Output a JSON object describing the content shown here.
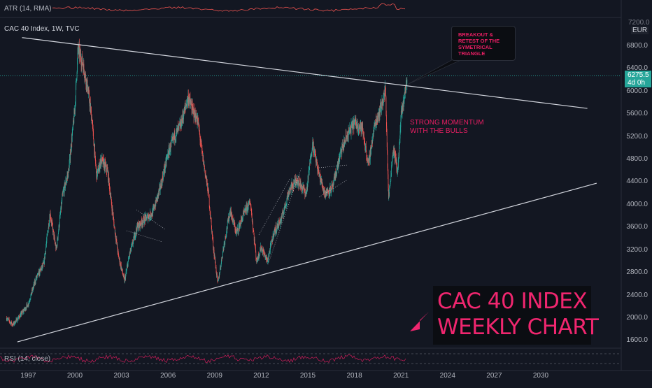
{
  "top_indicator": {
    "label": "ATR (14, RMA)",
    "unit_tick": "7200.0"
  },
  "chart_header": {
    "symbol_line": "CAC 40 Index, 1W, TVC",
    "currency": "EUR"
  },
  "price_tag": {
    "price": "6275.5",
    "countdown": "4d 0h"
  },
  "annotations": {
    "breakout_note": "BREAKOUT & RETEST OF THE SYMETRICAL TRIANGLE",
    "momentum_note_line1": "STRONG MOMENTUM",
    "momentum_note_line2": "WITH THE BULLS",
    "title_line1": "CAC 40 INDEX",
    "title_line2": "WEEKLY CHART"
  },
  "bottom_indicator": {
    "label": "RSI (14, close)"
  },
  "colors": {
    "background": "#131722",
    "up": "#26a69a",
    "down": "#ef5350",
    "accent": "#f0266f",
    "trendline": "#d1d4dc",
    "atr": "#ef5350",
    "rsi": "#e91e63"
  },
  "chart_data": {
    "type": "candlestick",
    "title": "CAC 40 Index, 1W, TVC",
    "currency": "EUR",
    "y_axis": {
      "ticks": [
        1600,
        2000,
        2400,
        2800,
        3200,
        3600,
        4000,
        4400,
        4800,
        5200,
        5600,
        6000,
        6400,
        6800
      ],
      "ylim": [
        1400,
        7300
      ]
    },
    "x_axis": {
      "ticks": [
        "1997",
        "2000",
        "2003",
        "2006",
        "2009",
        "2012",
        "2015",
        "2018",
        "2021",
        "2024",
        "2027",
        "2030"
      ],
      "xlim": [
        1995.5,
        2033.5
      ]
    },
    "last_price": 6275.5,
    "price_path": [
      [
        1995.6,
        2000
      ],
      [
        1996.0,
        1880
      ],
      [
        1996.5,
        2050
      ],
      [
        1997.0,
        2250
      ],
      [
        1997.5,
        2700
      ],
      [
        1998.0,
        2950
      ],
      [
        1998.4,
        3850
      ],
      [
        1998.8,
        3200
      ],
      [
        1999.2,
        4150
      ],
      [
        1999.6,
        4600
      ],
      [
        2000.0,
        5700
      ],
      [
        2000.2,
        6750
      ],
      [
        2000.5,
        6500
      ],
      [
        2000.8,
        6100
      ],
      [
        2001.1,
        5500
      ],
      [
        2001.4,
        4500
      ],
      [
        2001.7,
        4800
      ],
      [
        2002.1,
        4600
      ],
      [
        2002.5,
        3700
      ],
      [
        2002.8,
        3100
      ],
      [
        2003.2,
        2650
      ],
      [
        2003.5,
        3100
      ],
      [
        2004.0,
        3600
      ],
      [
        2004.5,
        3750
      ],
      [
        2005.0,
        3850
      ],
      [
        2005.5,
        4300
      ],
      [
        2006.0,
        4900
      ],
      [
        2006.4,
        5200
      ],
      [
        2006.8,
        5400
      ],
      [
        2007.3,
        5900
      ],
      [
        2007.6,
        5650
      ],
      [
        2007.9,
        5500
      ],
      [
        2008.2,
        4900
      ],
      [
        2008.6,
        4200
      ],
      [
        2008.9,
        3300
      ],
      [
        2009.2,
        2600
      ],
      [
        2009.6,
        3300
      ],
      [
        2010.0,
        3900
      ],
      [
        2010.4,
        3500
      ],
      [
        2010.9,
        3850
      ],
      [
        2011.3,
        4050
      ],
      [
        2011.7,
        3000
      ],
      [
        2012.0,
        3250
      ],
      [
        2012.4,
        3000
      ],
      [
        2012.8,
        3500
      ],
      [
        2013.3,
        3750
      ],
      [
        2013.8,
        4250
      ],
      [
        2014.3,
        4450
      ],
      [
        2014.9,
        4200
      ],
      [
        2015.3,
        5100
      ],
      [
        2015.7,
        4550
      ],
      [
        2016.1,
        4200
      ],
      [
        2016.6,
        4300
      ],
      [
        2017.1,
        4900
      ],
      [
        2017.5,
        5200
      ],
      [
        2018.0,
        5450
      ],
      [
        2018.5,
        5350
      ],
      [
        2018.9,
        4700
      ],
      [
        2019.3,
        5400
      ],
      [
        2019.8,
        5800
      ],
      [
        2020.0,
        6050
      ],
      [
        2020.2,
        4100
      ],
      [
        2020.5,
        5000
      ],
      [
        2020.8,
        4600
      ],
      [
        2021.0,
        5550
      ],
      [
        2021.3,
        6050
      ],
      [
        2021.4,
        6275.5
      ]
    ],
    "trendlines": [
      {
        "name": "upper",
        "from": [
          1996.6,
          6950
        ],
        "to": [
          2033.0,
          5700
        ]
      },
      {
        "name": "lower",
        "from": [
          1996.3,
          1580
        ],
        "to": [
          2033.6,
          4380
        ]
      }
    ]
  }
}
